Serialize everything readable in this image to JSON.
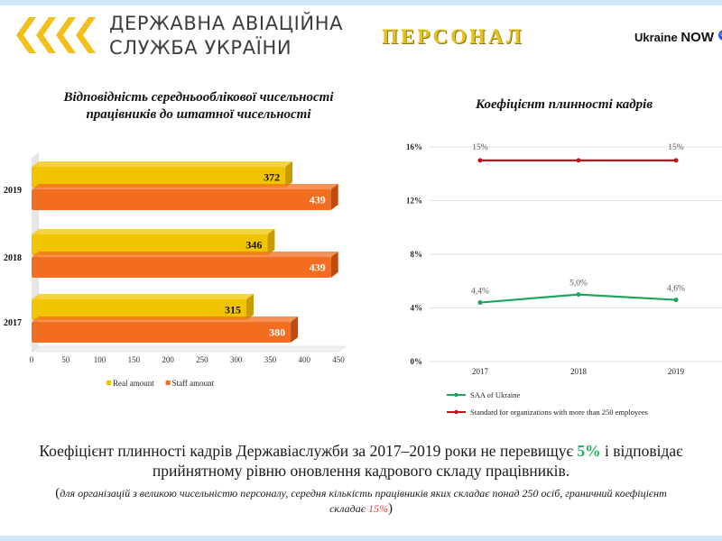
{
  "header": {
    "org_line1": "ДЕРЖАВНА АВІАЦІЙНА",
    "org_line2": "СЛУЖБА УКРАЇНИ",
    "title": "ПЕРСОНАЛ",
    "brand_text": "Ukraine",
    "brand_now": "NOW",
    "brand_badge": "ua",
    "logo_color": "#f3bf1b"
  },
  "conclusion": {
    "before": "Коефіцієнт плинності кадрів Державіаслужби за 2017–2019 роки не перевищує ",
    "highlight": "5%",
    "after": " і відповідає прийнятному рівню оновлення кадрового складу працівників.",
    "highlight_color": "#1fb158"
  },
  "note": {
    "open": "(",
    "text": "для організацій з великою чисельністю персоналу, середня кількість працівників  яких складає понад 250 осіб, граничний коефіцієнт складає ",
    "value": "15%",
    "close": ")"
  },
  "chart_data": [
    {
      "type": "bar",
      "orientation": "horizontal",
      "title_line1": "Відповідність середньооблікової чисельності",
      "title_line2": "працівників до штатної чисельності",
      "categories": [
        "2019",
        "2018",
        "2017"
      ],
      "series": [
        {
          "name": "Real amount",
          "values": [
            372,
            346,
            315
          ],
          "color": "#f2c400"
        },
        {
          "name": "Staff amount",
          "values": [
            439,
            439,
            380
          ],
          "color": "#f26d1f"
        }
      ],
      "xlim": [
        0,
        450
      ],
      "xticks": [
        "0",
        "50",
        "100",
        "150",
        "200",
        "250",
        "300",
        "350",
        "400",
        "450"
      ],
      "legend": "bottom",
      "grid": false
    },
    {
      "type": "line",
      "title": "Коефіцієнт плинності кадрів",
      "x": [
        "2017",
        "2018",
        "2019"
      ],
      "series": [
        {
          "name": "SAA of Ukraine",
          "values": [
            4.4,
            5.0,
            4.6
          ],
          "labels": [
            "4,4%",
            "5,0%",
            "4,6%"
          ],
          "color": "#1fa55b"
        },
        {
          "name": "Standard for organizations with more than 250 employees",
          "values": [
            15,
            15,
            15
          ],
          "labels": [
            "15%",
            "",
            "15%"
          ],
          "color": "#c0161b"
        }
      ],
      "ylim": [
        0,
        16
      ],
      "yticks": [
        "0%",
        "4%",
        "8%",
        "12%",
        "16%"
      ],
      "legend": "bottom",
      "grid": true
    }
  ]
}
